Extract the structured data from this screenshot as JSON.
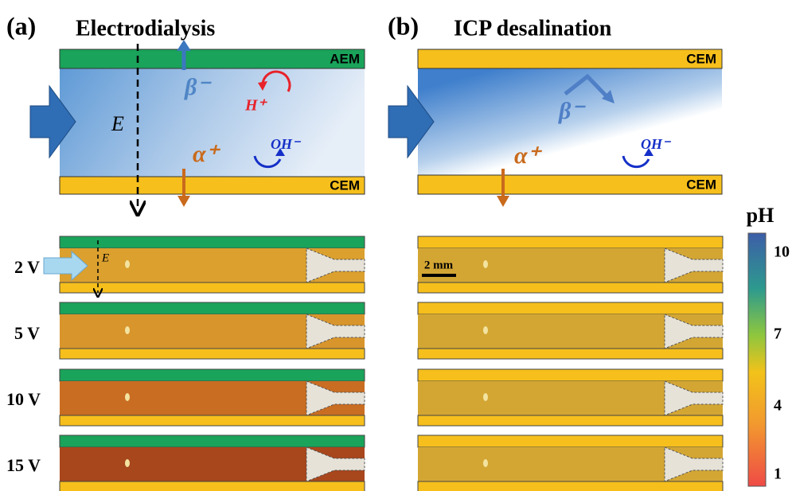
{
  "panel_a": {
    "label": "(a)",
    "title": "Electrodialysis",
    "top_membrane": "AEM",
    "bottom_membrane": "CEM",
    "ion_beta": "β⁻",
    "ion_h": "H⁺",
    "ion_oh": "OH⁻",
    "ion_alpha": "α⁺",
    "field": "E",
    "voltages": [
      "2 V",
      "5 V",
      "10 V",
      "15 V"
    ]
  },
  "panel_b": {
    "label": "(b)",
    "title": "ICP desalination",
    "top_membrane": "CEM",
    "bottom_membrane": "CEM",
    "ion_beta": "β⁻",
    "ion_oh": "OH⁻",
    "ion_alpha": "α⁺",
    "scale_bar": "2 mm"
  },
  "colorbar": {
    "title": "pH",
    "ticks": [
      "10",
      "7",
      "4",
      "1"
    ]
  }
}
